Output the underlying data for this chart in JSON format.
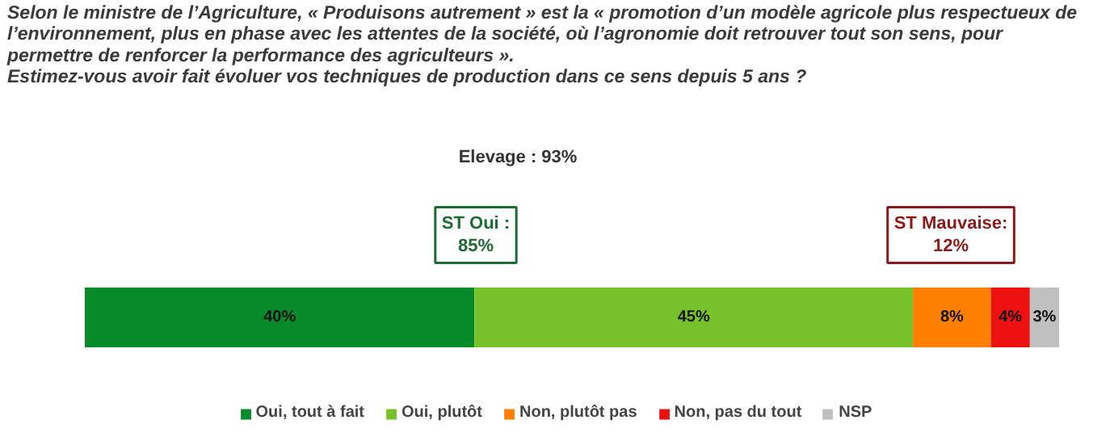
{
  "chart_data": {
    "type": "bar",
    "orientation": "horizontal",
    "stacked": true,
    "title": "Selon le ministre de l’Agriculture, « Produisons autrement » est la « promotion d’un modèle agricole plus respectueux de\nl’environnement, plus en phase avec les attentes de la société, où l’agronomie doit retrouver tout son sens, pour\npermettre de renforcer la performance des agriculteurs ».\nEstimez-vous avoir fait évoluer vos techniques de production dans ce sens depuis 5 ans ?",
    "categories": [
      null
    ],
    "series": [
      {
        "name": "Oui, tout à fait",
        "color": "#078a2a",
        "values": [
          40
        ],
        "value_labels": [
          "40%"
        ]
      },
      {
        "name": "Oui, plutôt",
        "color": "#77c22a",
        "values": [
          45
        ],
        "value_labels": [
          "45%"
        ]
      },
      {
        "name": "Non, plutôt pas",
        "color": "#ff8000",
        "values": [
          8
        ],
        "value_labels": [
          "8%"
        ]
      },
      {
        "name": "Non, pas du tout",
        "color": "#ee1111",
        "values": [
          4
        ],
        "value_labels": [
          "4%"
        ]
      },
      {
        "name": "NSP",
        "color": "#c0c0c0",
        "values": [
          3
        ],
        "value_labels": [
          "3%"
        ]
      }
    ],
    "annotations": [
      "Elevage : 93%",
      "ST Oui :\n85%",
      "ST Mauvaise:\n12%"
    ],
    "legend": "bottom",
    "grid": false,
    "tick_labels": false
  }
}
